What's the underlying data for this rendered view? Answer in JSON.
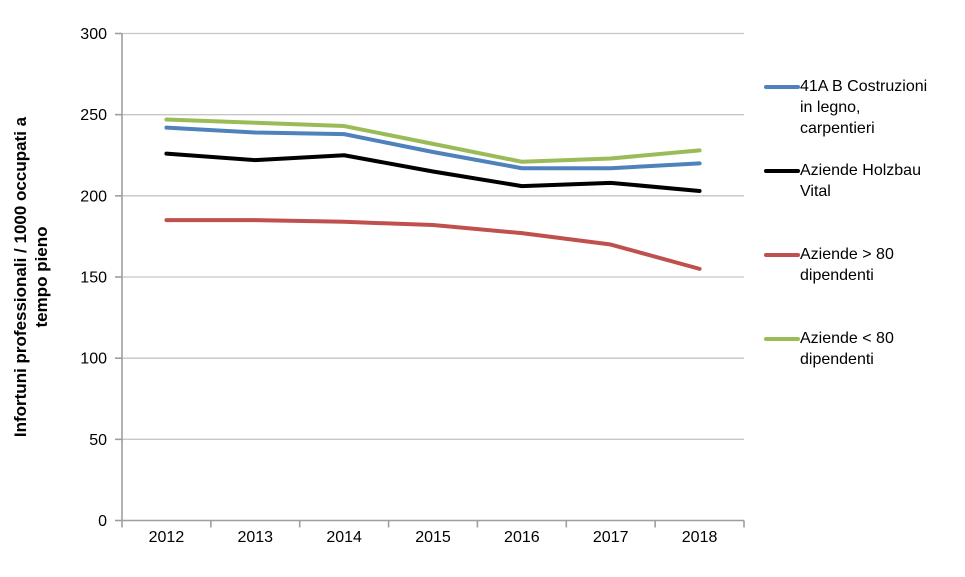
{
  "chart_data": {
    "type": "line",
    "title": "",
    "categories": [
      "2012",
      "2013",
      "2014",
      "2015",
      "2016",
      "2017",
      "2018"
    ],
    "series": [
      {
        "name": "41A B Costruzioni in legno, carpentieri",
        "color": "#4F81BD",
        "values": [
          242,
          239,
          238,
          227,
          217,
          217,
          220
        ]
      },
      {
        "name": "Aziende Holzbau Vital",
        "color": "#000000",
        "values": [
          226,
          222,
          225,
          215,
          206,
          208,
          203
        ]
      },
      {
        "name": "Aziende > 80 dipendenti",
        "color": "#C0504D",
        "values": [
          185,
          185,
          184,
          182,
          177,
          170,
          155
        ]
      },
      {
        "name": "Aziende < 80 dipendenti",
        "color": "#9BBB59",
        "values": [
          247,
          245,
          243,
          232,
          221,
          223,
          228
        ]
      }
    ],
    "xlabel": "",
    "ylabel": "Infortuni professionali / 1000 occupati a tempo pieno",
    "ylabel_lines": [
      "Infortuni professionali / 1000 occupati a",
      "tempo pieno"
    ],
    "ylim": [
      0,
      300
    ],
    "yticks": [
      0,
      50,
      100,
      150,
      200,
      250,
      300
    ],
    "grid": true,
    "legend_position": "right",
    "grid_color": "#C6C6C6",
    "axis_color": "#9E9E9E",
    "text_color": "#000000"
  }
}
